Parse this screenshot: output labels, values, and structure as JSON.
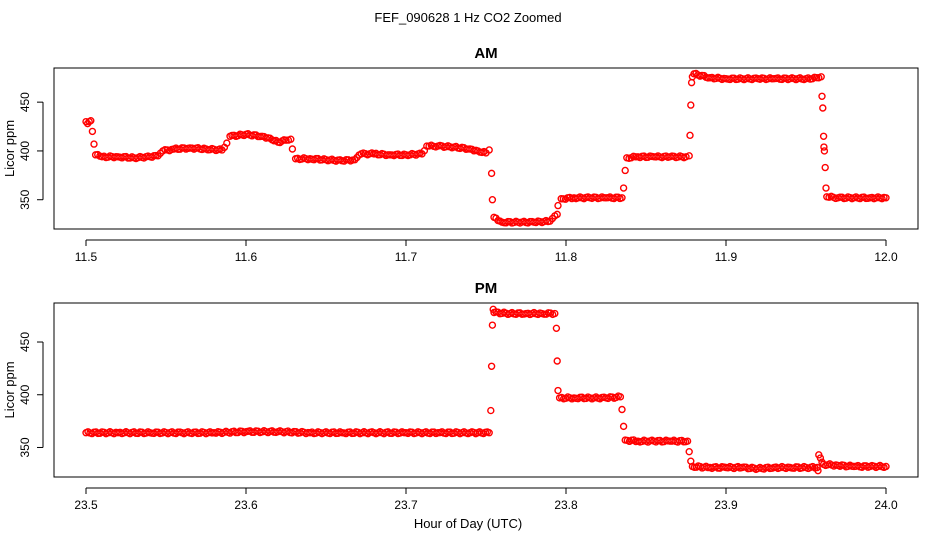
{
  "figure": {
    "title": "FEF_090628  1 Hz CO2 Zoomed",
    "xlabel": "Hour of Day (UTC)"
  },
  "colors": {
    "marker": "#ff0000",
    "axis": "#000000",
    "background": "#ffffff"
  },
  "chart_data": [
    {
      "type": "scatter",
      "title": "AM",
      "xlabel": "",
      "ylabel": "Licor ppm",
      "xlim": [
        11.48,
        12.02
      ],
      "ylim": [
        320,
        485
      ],
      "xticks": [
        11.5,
        11.6,
        11.7,
        11.8,
        11.9,
        12.0
      ],
      "xtick_labels": [
        "11.5",
        "11.6",
        "11.7",
        "11.8",
        "11.9",
        "12.0"
      ],
      "yticks": [
        350,
        400,
        450
      ],
      "ytick_labels": [
        "350",
        "400",
        "450"
      ],
      "grid": false,
      "legend": "none",
      "series": [
        {
          "marker": "open-circle",
          "points": [
            [
              11.5,
              430
            ],
            [
              11.501,
              428
            ],
            [
              11.502,
              430
            ],
            [
              11.503,
              431
            ],
            [
              11.504,
              420
            ],
            [
              11.505,
              407
            ],
            [
              11.506,
              396
            ],
            [
              11.51,
              394
            ],
            [
              11.52,
              394
            ],
            [
              11.53,
              393
            ],
            [
              11.54,
              394
            ],
            [
              11.545,
              395
            ],
            [
              11.548,
              400
            ],
            [
              11.555,
              402
            ],
            [
              11.565,
              403
            ],
            [
              11.575,
              402
            ],
            [
              11.585,
              401
            ],
            [
              11.588,
              408
            ],
            [
              11.59,
              415
            ],
            [
              11.6,
              417
            ],
            [
              11.61,
              415
            ],
            [
              11.615,
              413
            ],
            [
              11.62,
              409
            ],
            [
              11.625,
              411
            ],
            [
              11.628,
              412
            ],
            [
              11.629,
              402
            ],
            [
              11.631,
              392
            ],
            [
              11.64,
              392
            ],
            [
              11.65,
              391
            ],
            [
              11.66,
              390
            ],
            [
              11.668,
              391
            ],
            [
              11.672,
              397
            ],
            [
              11.68,
              397
            ],
            [
              11.69,
              396
            ],
            [
              11.7,
              396
            ],
            [
              11.71,
              397
            ],
            [
              11.713,
              405
            ],
            [
              11.72,
              405
            ],
            [
              11.73,
              404
            ],
            [
              11.74,
              402
            ],
            [
              11.745,
              400
            ],
            [
              11.75,
              398
            ],
            [
              11.752,
              401
            ],
            [
              11.7535,
              377
            ],
            [
              11.754,
              350
            ],
            [
              11.755,
              332
            ],
            [
              11.76,
              327
            ],
            [
              11.77,
              327
            ],
            [
              11.78,
              327
            ],
            [
              11.79,
              328
            ],
            [
              11.7945,
              335
            ],
            [
              11.795,
              344
            ],
            [
              11.797,
              351
            ],
            [
              11.805,
              352
            ],
            [
              11.815,
              352
            ],
            [
              11.825,
              352
            ],
            [
              11.835,
              352
            ],
            [
              11.836,
              362
            ],
            [
              11.837,
              380
            ],
            [
              11.838,
              393
            ],
            [
              11.845,
              394
            ],
            [
              11.855,
              394
            ],
            [
              11.865,
              394
            ],
            [
              11.875,
              394
            ],
            [
              11.877,
              395
            ],
            [
              11.8775,
              416
            ],
            [
              11.878,
              447
            ],
            [
              11.8785,
              470
            ],
            [
              11.879,
              476
            ],
            [
              11.88,
              479
            ],
            [
              11.89,
              475
            ],
            [
              11.9,
              474
            ],
            [
              11.91,
              474
            ],
            [
              11.92,
              474
            ],
            [
              11.93,
              474
            ],
            [
              11.94,
              474
            ],
            [
              11.95,
              474
            ],
            [
              11.958,
              475
            ],
            [
              11.9595,
              476
            ],
            [
              11.96,
              456
            ],
            [
              11.9605,
              444
            ],
            [
              11.961,
              415
            ],
            [
              11.9612,
              404
            ],
            [
              11.9615,
              400
            ],
            [
              11.962,
              383
            ],
            [
              11.9625,
              362
            ],
            [
              11.963,
              353
            ],
            [
              11.97,
              352
            ],
            [
              11.98,
              352
            ],
            [
              11.99,
              352
            ],
            [
              12.0,
              352
            ]
          ]
        }
      ]
    },
    {
      "type": "scatter",
      "title": "PM",
      "xlabel": "Hour of Day (UTC)",
      "ylabel": "Licor ppm",
      "xlim": [
        23.48,
        24.02
      ],
      "ylim": [
        322,
        487
      ],
      "xticks": [
        23.5,
        23.6,
        23.7,
        23.8,
        23.9,
        24.0
      ],
      "xtick_labels": [
        "23.5",
        "23.6",
        "23.7",
        "23.8",
        "23.9",
        "24.0"
      ],
      "yticks": [
        350,
        400,
        450
      ],
      "ytick_labels": [
        "350",
        "400",
        "450"
      ],
      "grid": false,
      "legend": "none",
      "series": [
        {
          "marker": "open-circle",
          "points": [
            [
              23.5,
              364
            ],
            [
              23.52,
              364
            ],
            [
              23.54,
              364
            ],
            [
              23.56,
              364
            ],
            [
              23.58,
              364
            ],
            [
              23.6,
              365
            ],
            [
              23.62,
              365
            ],
            [
              23.64,
              364
            ],
            [
              23.66,
              364
            ],
            [
              23.68,
              364
            ],
            [
              23.7,
              364
            ],
            [
              23.72,
              364
            ],
            [
              23.74,
              364
            ],
            [
              23.752,
              364
            ],
            [
              23.753,
              385
            ],
            [
              23.7535,
              427
            ],
            [
              23.754,
              466
            ],
            [
              23.7545,
              481
            ],
            [
              23.755,
              478
            ],
            [
              23.765,
              477
            ],
            [
              23.775,
              477
            ],
            [
              23.785,
              477
            ],
            [
              23.793,
              477
            ],
            [
              23.794,
              463
            ],
            [
              23.7945,
              432
            ],
            [
              23.795,
              404
            ],
            [
              23.796,
              397
            ],
            [
              23.805,
              397
            ],
            [
              23.815,
              397
            ],
            [
              23.825,
              397
            ],
            [
              23.834,
              398
            ],
            [
              23.835,
              386
            ],
            [
              23.836,
              370
            ],
            [
              23.837,
              357
            ],
            [
              23.845,
              356
            ],
            [
              23.855,
              356
            ],
            [
              23.865,
              356
            ],
            [
              23.876,
              356
            ],
            [
              23.877,
              346
            ],
            [
              23.878,
              337
            ],
            [
              23.879,
              332
            ],
            [
              23.89,
              331
            ],
            [
              23.9,
              331
            ],
            [
              23.91,
              331
            ],
            [
              23.92,
              330
            ],
            [
              23.93,
              331
            ],
            [
              23.94,
              331
            ],
            [
              23.95,
              331
            ],
            [
              23.957,
              331
            ],
            [
              23.9575,
              328
            ],
            [
              23.958,
              343
            ],
            [
              23.959,
              340
            ],
            [
              23.96,
              336
            ],
            [
              23.961,
              334
            ],
            [
              23.97,
              333
            ],
            [
              23.98,
              332
            ],
            [
              23.99,
              332
            ],
            [
              24.0,
              332
            ]
          ]
        }
      ]
    }
  ]
}
